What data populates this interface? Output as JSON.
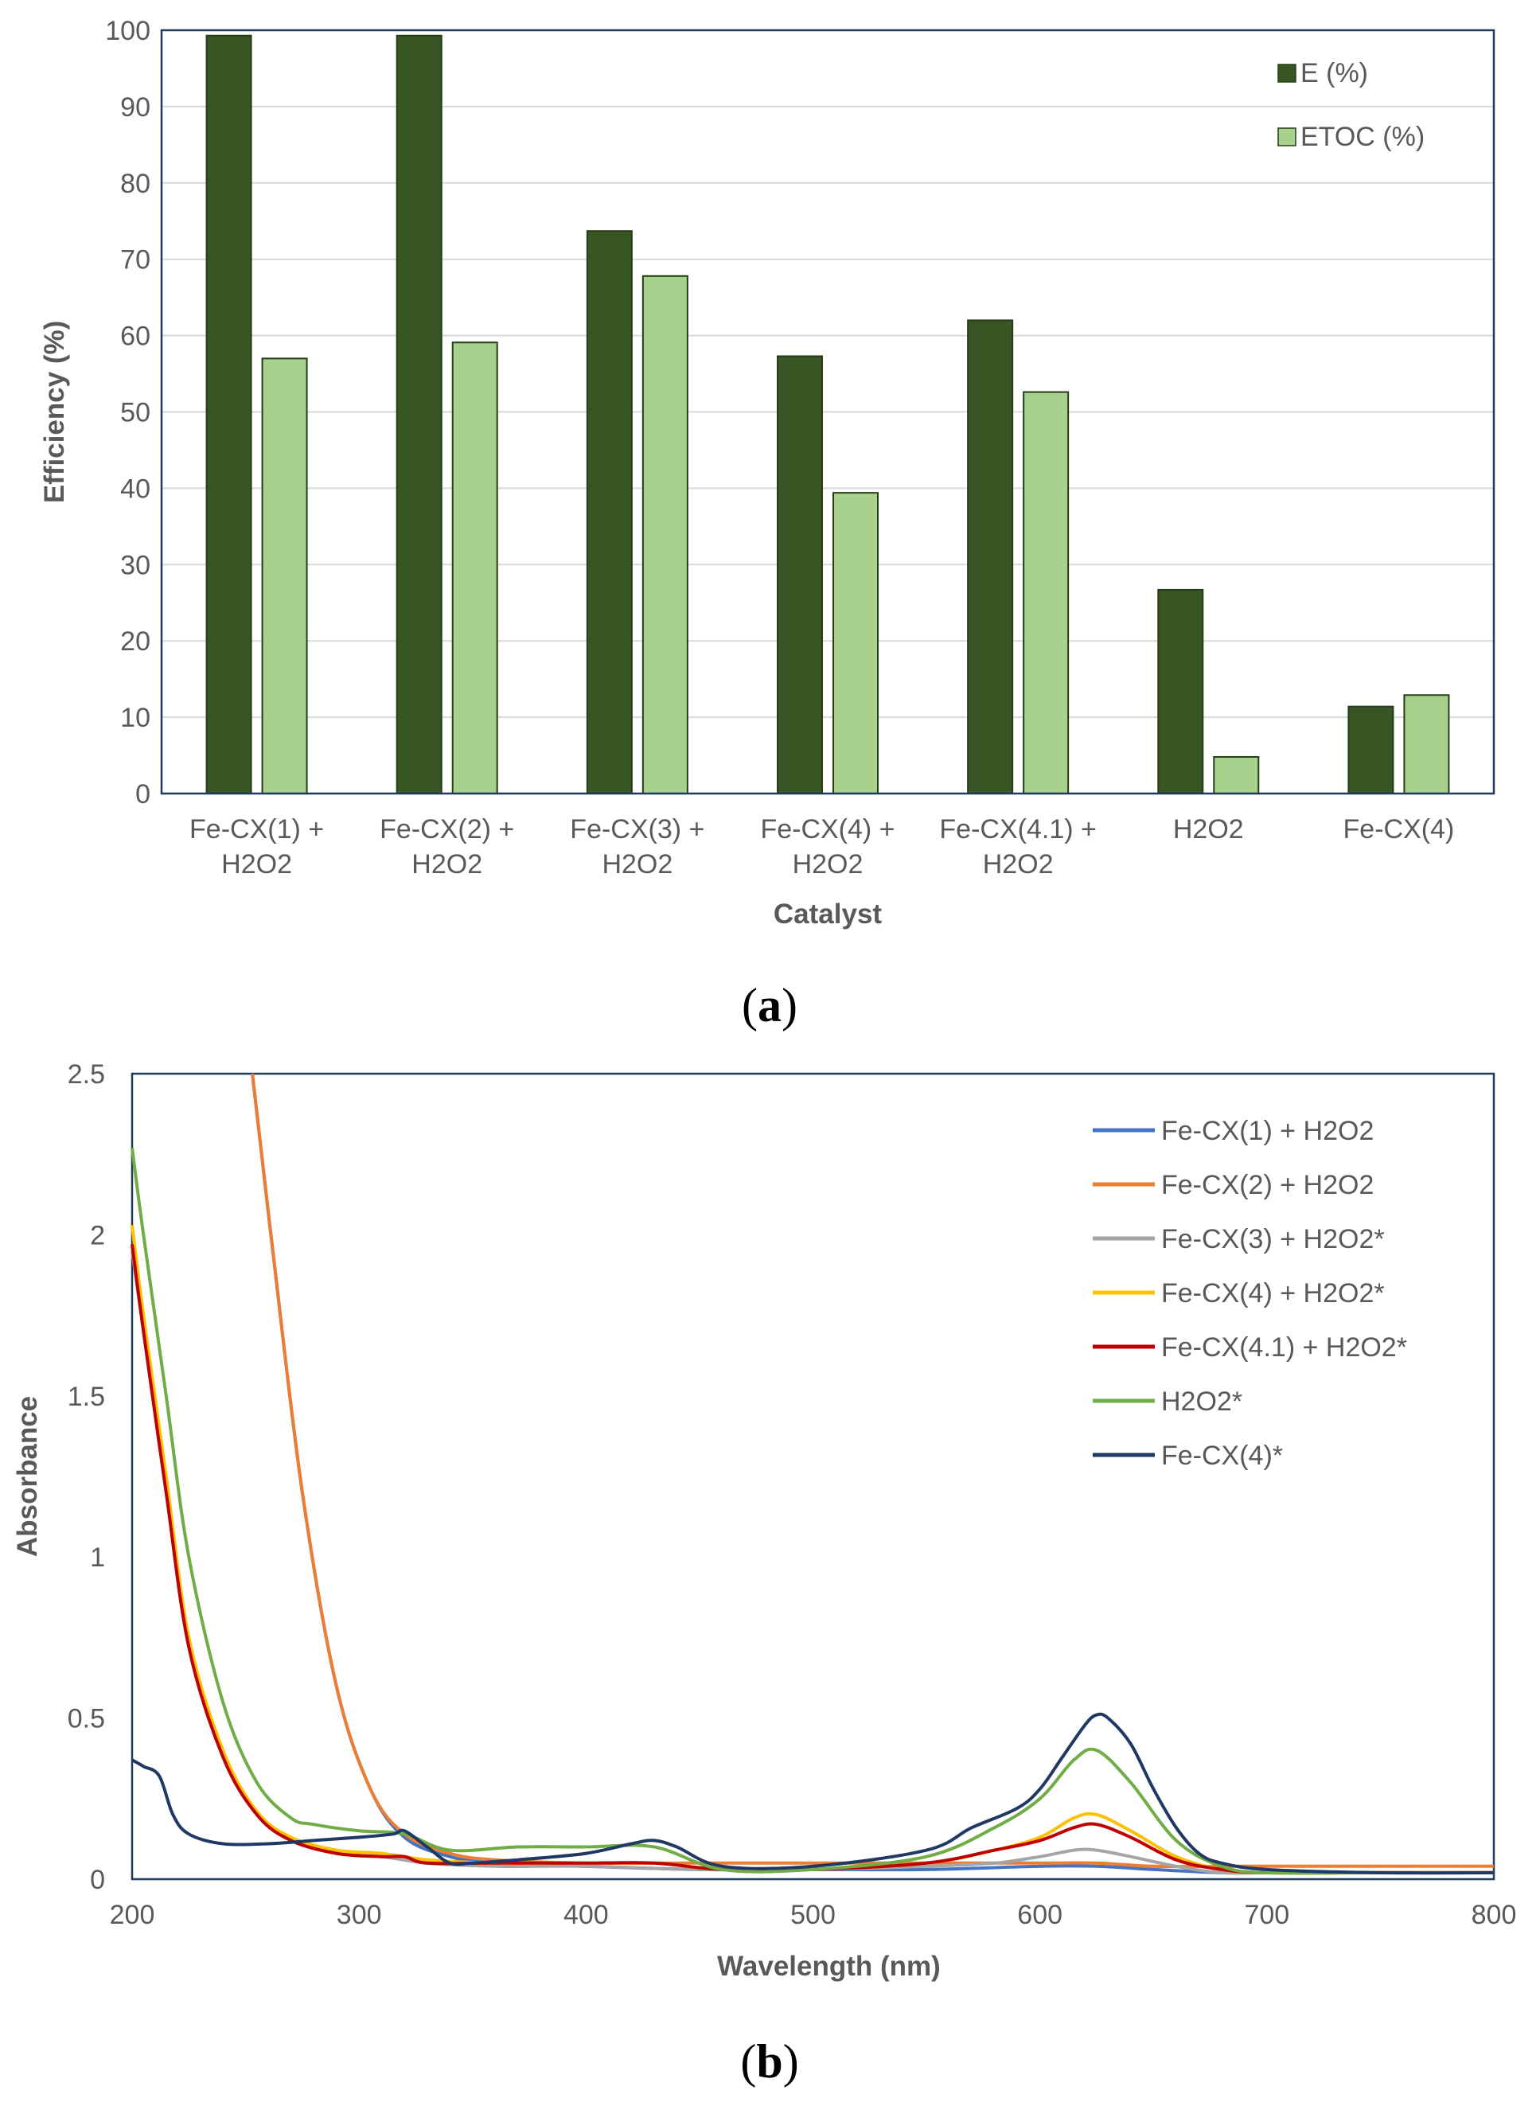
{
  "chart_data": [
    {
      "type": "bar",
      "panel_label": "(a)",
      "title": "",
      "xlabel": "Catalyst",
      "ylabel": "Efficiency (%)",
      "ylim": [
        0,
        100
      ],
      "yticks": [
        0,
        10,
        20,
        30,
        40,
        50,
        60,
        70,
        80,
        90,
        100
      ],
      "grid": true,
      "legend_position": "top-right",
      "categories": [
        [
          "Fe-CX(1) +",
          "H2O2"
        ],
        [
          "Fe-CX(2) +",
          "H2O2"
        ],
        [
          "Fe-CX(3) +",
          "H2O2"
        ],
        [
          "Fe-CX(4) +",
          "H2O2"
        ],
        [
          "Fe-CX(4.1) +",
          "H2O2"
        ],
        [
          "H2O2"
        ],
        [
          "Fe-CX(4)"
        ]
      ],
      "series": [
        {
          "name": "E (%)",
          "color": "#375623",
          "values": [
            99.3,
            99.3,
            73.7,
            57.3,
            62.0,
            26.7,
            11.4
          ]
        },
        {
          "name": "ETOC (%)",
          "color": "#a9d18e",
          "values": [
            57.0,
            59.1,
            67.8,
            39.4,
            52.6,
            4.8,
            12.9
          ]
        }
      ]
    },
    {
      "type": "line",
      "panel_label": "(b)",
      "title": "",
      "xlabel": "Wavelength (nm)",
      "ylabel": "Absorbance",
      "xlim": [
        200,
        800
      ],
      "ylim": [
        0,
        2.5
      ],
      "xticks": [
        200,
        300,
        400,
        500,
        600,
        700,
        800
      ],
      "yticks": [
        0,
        0.5,
        1,
        1.5,
        2,
        2.5
      ],
      "ytick_labels": [
        "0",
        "0.5",
        "1",
        "1.5",
        "2",
        "2.5"
      ],
      "grid": false,
      "legend_position": "top-right",
      "series": [
        {
          "name": "Fe-CX(1) + H2O2",
          "color": "#4472c4",
          "x": [
            253,
            262,
            275,
            290,
            305,
            320,
            340,
            360,
            400,
            450,
            500,
            550,
            600,
            625,
            650,
            680,
            700,
            750,
            800
          ],
          "y": [
            2.5,
            1.95,
            1.2,
            0.6,
            0.28,
            0.13,
            0.07,
            0.05,
            0.04,
            0.03,
            0.03,
            0.03,
            0.04,
            0.04,
            0.03,
            0.02,
            0.02,
            0.02,
            0.02
          ]
        },
        {
          "name": "Fe-CX(2) + H2O2",
          "color": "#ed7d31",
          "x": [
            253,
            262,
            275,
            290,
            305,
            320,
            340,
            360,
            400,
            450,
            500,
            550,
            600,
            625,
            650,
            680,
            700,
            750,
            800
          ],
          "y": [
            2.5,
            1.95,
            1.2,
            0.6,
            0.28,
            0.14,
            0.08,
            0.06,
            0.05,
            0.05,
            0.05,
            0.05,
            0.05,
            0.05,
            0.04,
            0.04,
            0.04,
            0.04,
            0.04
          ]
        },
        {
          "name": "Fe-CX(3) + H2O2*",
          "color": "#a5a5a5",
          "x": [
            200,
            205,
            215,
            225,
            240,
            255,
            270,
            290,
            310,
            330,
            360,
            400,
            450,
            500,
            550,
            580,
            600,
            615,
            625,
            640,
            660,
            680,
            700,
            750,
            800
          ],
          "y": [
            1.95,
            1.7,
            1.2,
            0.72,
            0.38,
            0.2,
            0.12,
            0.08,
            0.07,
            0.05,
            0.04,
            0.04,
            0.03,
            0.03,
            0.04,
            0.05,
            0.07,
            0.09,
            0.09,
            0.07,
            0.04,
            0.02,
            0.02,
            0.02,
            0.02
          ]
        },
        {
          "name": "Fe-CX(4) + H2O2*",
          "color": "#ffc000",
          "x": [
            200,
            205,
            215,
            225,
            240,
            255,
            270,
            290,
            310,
            330,
            360,
            400,
            430,
            460,
            500,
            550,
            580,
            600,
            615,
            625,
            640,
            660,
            680,
            700,
            750,
            800
          ],
          "y": [
            2.03,
            1.75,
            1.25,
            0.75,
            0.4,
            0.21,
            0.13,
            0.09,
            0.08,
            0.06,
            0.05,
            0.05,
            0.05,
            0.03,
            0.03,
            0.05,
            0.09,
            0.13,
            0.19,
            0.2,
            0.15,
            0.07,
            0.03,
            0.02,
            0.02,
            0.02
          ]
        },
        {
          "name": "Fe-CX(4.1) + H2O2*",
          "color": "#c00000",
          "x": [
            200,
            205,
            215,
            225,
            240,
            255,
            270,
            290,
            310,
            320,
            330,
            360,
            400,
            430,
            460,
            500,
            550,
            580,
            600,
            615,
            625,
            640,
            660,
            680,
            700,
            750,
            800
          ],
          "y": [
            1.97,
            1.7,
            1.2,
            0.72,
            0.38,
            0.2,
            0.12,
            0.08,
            0.07,
            0.07,
            0.05,
            0.05,
            0.05,
            0.05,
            0.03,
            0.03,
            0.05,
            0.09,
            0.12,
            0.16,
            0.17,
            0.13,
            0.06,
            0.03,
            0.02,
            0.02,
            0.02
          ]
        },
        {
          "name": "H2O2*",
          "color": "#70ad47",
          "x": [
            200,
            205,
            215,
            225,
            240,
            255,
            270,
            280,
            300,
            320,
            340,
            370,
            400,
            430,
            460,
            500,
            550,
            580,
            600,
            615,
            625,
            640,
            660,
            680,
            700,
            750,
            800
          ],
          "y": [
            2.27,
            2.0,
            1.5,
            1.0,
            0.55,
            0.3,
            0.19,
            0.17,
            0.15,
            0.14,
            0.09,
            0.1,
            0.1,
            0.1,
            0.03,
            0.03,
            0.07,
            0.16,
            0.25,
            0.37,
            0.4,
            0.3,
            0.12,
            0.04,
            0.02,
            0.02,
            0.02
          ]
        },
        {
          "name": "Fe-CX(4)*",
          "color": "#203864",
          "x": [
            200,
            205,
            212,
            218,
            225,
            240,
            260,
            280,
            300,
            315,
            320,
            330,
            340,
            350,
            370,
            400,
            420,
            430,
            440,
            460,
            500,
            550,
            570,
            590,
            600,
            610,
            620,
            625,
            630,
            640,
            650,
            660,
            670,
            680,
            700,
            750,
            800
          ],
          "y": [
            0.37,
            0.35,
            0.32,
            0.2,
            0.14,
            0.11,
            0.11,
            0.12,
            0.13,
            0.14,
            0.15,
            0.1,
            0.05,
            0.05,
            0.06,
            0.08,
            0.11,
            0.12,
            0.1,
            0.04,
            0.04,
            0.09,
            0.16,
            0.22,
            0.28,
            0.38,
            0.48,
            0.51,
            0.5,
            0.42,
            0.28,
            0.16,
            0.08,
            0.05,
            0.03,
            0.02,
            0.02
          ]
        }
      ]
    }
  ]
}
